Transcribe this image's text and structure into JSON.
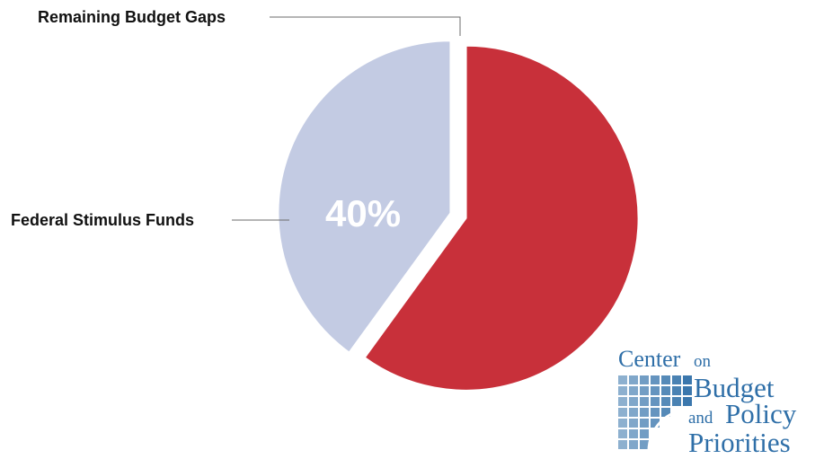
{
  "chart_data": {
    "type": "pie",
    "slices": [
      {
        "label": "Remaining Budget Gaps",
        "value": 60,
        "color": "#c8303a"
      },
      {
        "label": "Federal Stimulus Funds",
        "value": 40,
        "color": "#c3cbe3",
        "data_label": "40%"
      }
    ],
    "title": "",
    "legend": "none",
    "start": "top",
    "direction": "clockwise",
    "exploded": true
  },
  "logo": {
    "line1_big": "Center",
    "line1_small": "on",
    "line2": "Budget",
    "line3_small": "and",
    "line3_big": "Policy",
    "line4": "Priorities",
    "color": "#2f6fa8"
  }
}
